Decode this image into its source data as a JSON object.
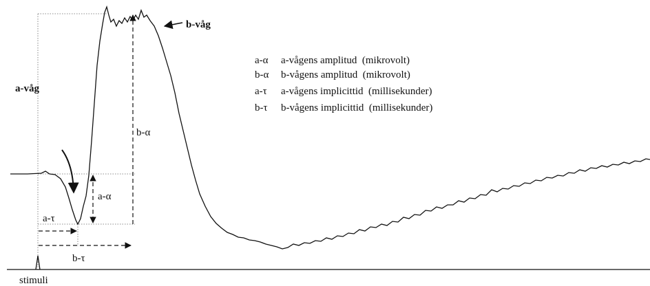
{
  "labels": {
    "b_wave": "b-våg",
    "a_wave": "a-våg",
    "b_alpha": "b-α",
    "a_alpha": "a-α",
    "a_tau": "a-τ",
    "b_tau": "b-τ",
    "stimuli": "stimuli"
  },
  "legend": [
    {
      "symbol": "a-α",
      "text": "a-vågens amplitud  (mikrovolt)"
    },
    {
      "symbol": "b-α",
      "text": "b-vågens amplitud  (mikrovolt)"
    },
    {
      "symbol": "a-τ",
      "text": "a-vågens implicittid  (millisekunder)"
    },
    {
      "symbol": "b-τ",
      "text": "b-vågens implicittid  (millisekunder)"
    }
  ]
}
